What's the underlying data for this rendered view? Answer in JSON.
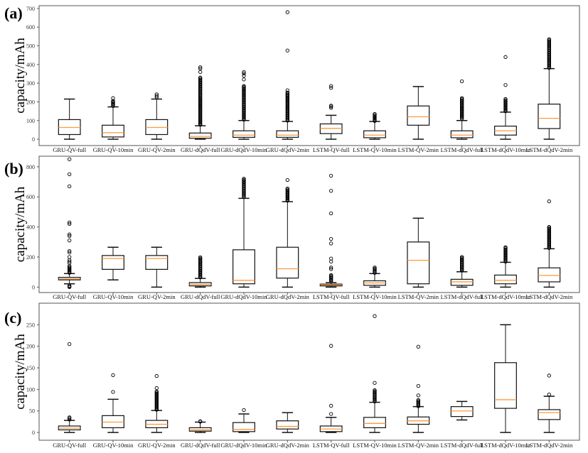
{
  "chart_data": [
    {
      "type": "box",
      "panel_label": "(a)",
      "ylabel": "capacity/mAh",
      "xlabel": "",
      "ylim": [
        -34,
        715
      ],
      "yticks": [
        0,
        100,
        200,
        300,
        400,
        500,
        600,
        700
      ],
      "grid": false,
      "categories": [
        "GRU-QV-full",
        "GRU-QV-10min",
        "GRU-QV-2min",
        "GRU-dQdV-full",
        "GRU-dQdV-10min",
        "GRU-dQdV-2min",
        "LSTM-QV-full",
        "LSTM-QV-10min",
        "LSTM-QV-2min",
        "LSTM-dQdV-full",
        "LSTM-dQdV-10min",
        "LSTM-dQdV-2min"
      ],
      "boxes": [
        {
          "whislo": 0,
          "q1": 25,
          "med": 63,
          "q3": 105,
          "whishi": 215,
          "fliers": [],
          "dense_fliers": null
        },
        {
          "whislo": 0,
          "q1": 12,
          "med": 35,
          "q3": 75,
          "whishi": 173,
          "fliers": [
            220
          ],
          "dense_fliers": [
            178,
            205
          ]
        },
        {
          "whislo": 0,
          "q1": 25,
          "med": 63,
          "q3": 105,
          "whishi": 215,
          "fliers": [
            225,
            232,
            240
          ],
          "dense_fliers": null
        },
        {
          "whislo": 0,
          "q1": 5,
          "med": 15,
          "q3": 33,
          "whishi": 72,
          "fliers": [
            360,
            378,
            385
          ],
          "dense_fliers": [
            78,
            330
          ]
        },
        {
          "whislo": 0,
          "q1": 10,
          "med": 22,
          "q3": 45,
          "whishi": 100,
          "fliers": [
            320,
            340,
            352,
            360
          ],
          "dense_fliers": [
            105,
            285
          ]
        },
        {
          "whislo": 0,
          "q1": 10,
          "med": 22,
          "q3": 45,
          "whishi": 95,
          "fliers": [
            262,
            475,
            680
          ],
          "dense_fliers": [
            100,
            250
          ]
        },
        {
          "whislo": 0,
          "q1": 30,
          "med": 58,
          "q3": 82,
          "whishi": 128,
          "fliers": [
            168,
            175,
            180,
            275,
            285
          ],
          "dense_fliers": null
        },
        {
          "whislo": 0,
          "q1": 8,
          "med": 22,
          "q3": 45,
          "whishi": 95,
          "fliers": [],
          "dense_fliers": [
            98,
            135
          ]
        },
        {
          "whislo": 0,
          "q1": 75,
          "med": 120,
          "q3": 178,
          "whishi": 282,
          "fliers": [],
          "dense_fliers": null
        },
        {
          "whislo": 0,
          "q1": 8,
          "med": 22,
          "q3": 45,
          "whishi": 100,
          "fliers": [
            310
          ],
          "dense_fliers": [
            110,
            220
          ]
        },
        {
          "whislo": 0,
          "q1": 22,
          "med": 45,
          "q3": 70,
          "whishi": 145,
          "fliers": [
            290,
            440
          ],
          "dense_fliers": [
            150,
            215
          ]
        },
        {
          "whislo": 0,
          "q1": 57,
          "med": 112,
          "q3": 188,
          "whishi": 378,
          "fliers": [],
          "dense_fliers": [
            382,
            535
          ]
        }
      ]
    },
    {
      "type": "box",
      "panel_label": "(b)",
      "ylabel": "capacity/mAh",
      "xlabel": "",
      "ylim": [
        -36,
        870
      ],
      "yticks": [
        0,
        200,
        400,
        600,
        800
      ],
      "grid": false,
      "categories": [
        "GRU-QV-full",
        "GRU-QV-10min",
        "GRU-QV-2min",
        "GRU-dQdV-full",
        "GRU-dQdV-10min",
        "GRU-dQdV-2min",
        "LSTM-QV-full",
        "LSTM-QV-10min",
        "LSTM-QV-2min",
        "LSTM-dQdV-full",
        "LSTM-dQdV-10min",
        "LSTM-dQdV-2min"
      ],
      "boxes": [
        {
          "whislo": 22,
          "q1": 48,
          "med": 55,
          "q3": 65,
          "whishi": 90,
          "fliers": [
            0,
            5,
            10,
            160,
            170,
            180,
            200,
            230,
            240,
            310,
            340,
            350,
            420,
            430,
            670,
            750,
            850
          ],
          "dense_fliers": [
            95,
            140
          ]
        },
        {
          "whislo": 48,
          "q1": 118,
          "med": 190,
          "q3": 210,
          "whishi": 265,
          "fliers": [],
          "dense_fliers": null
        },
        {
          "whislo": 0,
          "q1": 118,
          "med": 190,
          "q3": 210,
          "whishi": 265,
          "fliers": [],
          "dense_fliers": null
        },
        {
          "whislo": 0,
          "q1": 8,
          "med": 18,
          "q3": 30,
          "whishi": 58,
          "fliers": [],
          "dense_fliers": [
            65,
            198
          ]
        },
        {
          "whislo": 0,
          "q1": 22,
          "med": 45,
          "q3": 248,
          "whishi": 590,
          "fliers": [],
          "dense_fliers": [
            600,
            720
          ]
        },
        {
          "whislo": 0,
          "q1": 60,
          "med": 122,
          "q3": 265,
          "whishi": 568,
          "fliers": [
            712
          ],
          "dense_fliers": [
            575,
            655
          ]
        },
        {
          "whislo": 0,
          "q1": 8,
          "med": 15,
          "q3": 20,
          "whishi": 30,
          "fliers": [
            120,
            130,
            170,
            190,
            290,
            320,
            490,
            640,
            740
          ],
          "dense_fliers": [
            40,
            80
          ]
        },
        {
          "whislo": 0,
          "q1": 12,
          "med": 28,
          "q3": 42,
          "whishi": 90,
          "fliers": [],
          "dense_fliers": [
            95,
            130
          ]
        },
        {
          "whislo": 0,
          "q1": 22,
          "med": 178,
          "q3": 300,
          "whishi": 458,
          "fliers": [],
          "dense_fliers": null
        },
        {
          "whislo": 0,
          "q1": 12,
          "med": 35,
          "q3": 52,
          "whishi": 102,
          "fliers": [],
          "dense_fliers": [
            110,
            200
          ]
        },
        {
          "whislo": 0,
          "q1": 22,
          "med": 45,
          "q3": 80,
          "whishi": 165,
          "fliers": [],
          "dense_fliers": [
            170,
            265
          ]
        },
        {
          "whislo": 0,
          "q1": 35,
          "med": 78,
          "q3": 128,
          "whishi": 255,
          "fliers": [
            570
          ],
          "dense_fliers": [
            260,
            400
          ]
        }
      ]
    },
    {
      "type": "box",
      "panel_label": "(c)",
      "ylabel": "capacity/mAh",
      "xlabel": "",
      "ylim": [
        -18,
        300
      ],
      "yticks": [
        0,
        50,
        100,
        150,
        200,
        250
      ],
      "grid": false,
      "categories": [
        "GRU-QV-full",
        "GRU-QV-10min",
        "GRU-QV-2min",
        "GRU-dQdV-full",
        "GRU-dQdV-10min",
        "GRU-dQdV-2min",
        "LSTM-QV-full",
        "LSTM-QV-10min",
        "LSTM-QV-2min",
        "LSTM-dQdV-full",
        "LSTM-dQdV-10min",
        "LSTM-dQdV-2min"
      ],
      "boxes": [
        {
          "whislo": 0,
          "q1": 6,
          "med": 10,
          "q3": 15,
          "whishi": 28,
          "fliers": [
            30,
            33,
            35,
            205
          ],
          "dense_fliers": null
        },
        {
          "whislo": 0,
          "q1": 11,
          "med": 24,
          "q3": 39,
          "whishi": 77,
          "fliers": [
            94,
            133
          ],
          "dense_fliers": null
        },
        {
          "whislo": 0,
          "q1": 11,
          "med": 19,
          "q3": 28,
          "whishi": 51,
          "fliers": [
            103,
            131
          ],
          "dense_fliers": [
            53,
            95
          ]
        },
        {
          "whislo": 0,
          "q1": 3,
          "med": 6,
          "q3": 11,
          "whishi": 24,
          "fliers": [
            25,
            26
          ],
          "dense_fliers": null
        },
        {
          "whislo": 0,
          "q1": 2,
          "med": 7,
          "q3": 23,
          "whishi": 43,
          "fliers": [
            52
          ],
          "dense_fliers": null
        },
        {
          "whislo": 0,
          "q1": 8,
          "med": 14,
          "q3": 27,
          "whishi": 46,
          "fliers": [],
          "dense_fliers": null
        },
        {
          "whislo": 0,
          "q1": 2,
          "med": 8,
          "q3": 15,
          "whishi": 35,
          "fliers": [
            43,
            62,
            201
          ],
          "dense_fliers": null
        },
        {
          "whislo": 0,
          "q1": 11,
          "med": 21,
          "q3": 35,
          "whishi": 70,
          "fliers": [
            115,
            270
          ],
          "dense_fliers": [
            72,
            98
          ]
        },
        {
          "whislo": 0,
          "q1": 19,
          "med": 27,
          "q3": 36,
          "whishi": 60,
          "fliers": [
            86,
            108,
            199
          ],
          "dense_fliers": [
            61,
            75
          ]
        },
        {
          "whislo": 29,
          "q1": 37,
          "med": 50,
          "q3": 60,
          "whishi": 72,
          "fliers": [],
          "dense_fliers": null
        },
        {
          "whislo": 0,
          "q1": 56,
          "med": 76,
          "q3": 162,
          "whishi": 250,
          "fliers": [],
          "dense_fliers": null
        },
        {
          "whislo": 0,
          "q1": 30,
          "med": 46,
          "q3": 53,
          "whishi": 84,
          "fliers": [
            88,
            132
          ],
          "dense_fliers": null
        }
      ]
    }
  ],
  "colors": {
    "box": "#111111",
    "median": "#ff9a3c",
    "frame": "#555555"
  }
}
